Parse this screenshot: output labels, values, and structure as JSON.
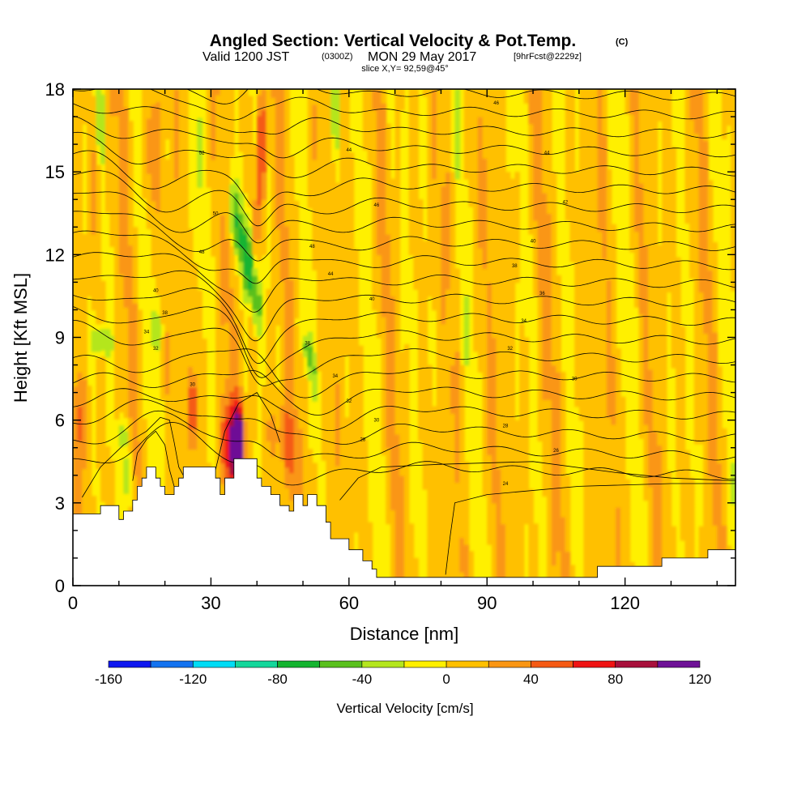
{
  "chart_data": {
    "type": "heatmap",
    "title": "Angled Section: Vertical Velocity & Pot.Temp.",
    "title_unit": "(C)",
    "subtitle_valid": "Valid 1200 JST",
    "subtitle_utc": "(0300Z)",
    "subtitle_date": "MON 29 May 2017",
    "subtitle_fcst": "[9hrFcst@2229z]",
    "slice_label": "slice X,Y= 92,59@45°",
    "xlabel": "Distance [nm]",
    "ylabel": "Height [Kft MSL]",
    "xlim": [
      0,
      144
    ],
    "ylim": [
      0,
      18
    ],
    "x_ticks": [
      "0",
      "30",
      "60",
      "90",
      "120"
    ],
    "x_tick_values": [
      0,
      30,
      60,
      90,
      120
    ],
    "y_ticks": [
      "0",
      "3",
      "6",
      "9",
      "12",
      "15",
      "18"
    ],
    "y_tick_values": [
      0,
      3,
      6,
      9,
      12,
      15,
      18
    ],
    "colorbar": {
      "label": "Vertical Velocity [cm/s]",
      "tick_labels": [
        "-160",
        "-120",
        "-80",
        "-40",
        "0",
        "40",
        "80",
        "120"
      ],
      "bounds": [
        -160,
        -140,
        -120,
        -100,
        -80,
        -60,
        -40,
        -20,
        0,
        20,
        40,
        60,
        80,
        100,
        120
      ],
      "colors": [
        "#0f18f0",
        "#1473f0",
        "#00dcf5",
        "#14d79b",
        "#14b430",
        "#5ac01e",
        "#b4e61e",
        "#fff000",
        "#ffc000",
        "#fa9614",
        "#f55a14",
        "#f01414",
        "#a8103c",
        "#6e1196"
      ]
    },
    "terrain_kft": [
      [
        0,
        2.6
      ],
      [
        6,
        2.6
      ],
      [
        6,
        2.9
      ],
      [
        10,
        2.9
      ],
      [
        10,
        2.4
      ],
      [
        11,
        2.4
      ],
      [
        11,
        2.7
      ],
      [
        13,
        2.7
      ],
      [
        13,
        3.1
      ],
      [
        14,
        3.1
      ],
      [
        14,
        3.6
      ],
      [
        15,
        3.6
      ],
      [
        15,
        3.9
      ],
      [
        16,
        3.9
      ],
      [
        16,
        4.3
      ],
      [
        18,
        4.3
      ],
      [
        18,
        3.9
      ],
      [
        19,
        3.9
      ],
      [
        19,
        3.6
      ],
      [
        20,
        3.6
      ],
      [
        20,
        3.3
      ],
      [
        22,
        3.3
      ],
      [
        22,
        3.6
      ],
      [
        23,
        3.6
      ],
      [
        23,
        3.9
      ],
      [
        24,
        3.9
      ],
      [
        24,
        4.3
      ],
      [
        31,
        4.3
      ],
      [
        31,
        3.9
      ],
      [
        32,
        3.9
      ],
      [
        32,
        3.3
      ],
      [
        33,
        3.3
      ],
      [
        33,
        3.9
      ],
      [
        35,
        3.9
      ],
      [
        35,
        4.6
      ],
      [
        40,
        4.6
      ],
      [
        40,
        3.9
      ],
      [
        41,
        3.9
      ],
      [
        41,
        3.6
      ],
      [
        43,
        3.6
      ],
      [
        43,
        3.3
      ],
      [
        45,
        3.3
      ],
      [
        45,
        2.9
      ],
      [
        47,
        2.9
      ],
      [
        47,
        2.7
      ],
      [
        48,
        2.7
      ],
      [
        48,
        3.3
      ],
      [
        50,
        3.3
      ],
      [
        50,
        2.9
      ],
      [
        51,
        2.9
      ],
      [
        51,
        3.3
      ],
      [
        53,
        3.3
      ],
      [
        53,
        2.9
      ],
      [
        55,
        2.9
      ],
      [
        55,
        2.3
      ],
      [
        56,
        2.3
      ],
      [
        56,
        1.7
      ],
      [
        60,
        1.7
      ],
      [
        60,
        1.3
      ],
      [
        63,
        1.3
      ],
      [
        63,
        0.9
      ],
      [
        65,
        0.9
      ],
      [
        65,
        0.6
      ],
      [
        66,
        0.6
      ],
      [
        66,
        0.3
      ],
      [
        114,
        0.3
      ],
      [
        114,
        0.7
      ],
      [
        128,
        0.7
      ],
      [
        128,
        1.0
      ],
      [
        138,
        1.0
      ],
      [
        138,
        1.3
      ],
      [
        144,
        1.3
      ]
    ],
    "temp_labels": [
      {
        "x": 92,
        "y": 17.5,
        "text": "46"
      },
      {
        "x": 28,
        "y": 15.7,
        "text": "52"
      },
      {
        "x": 60,
        "y": 15.8,
        "text": "44"
      },
      {
        "x": 103,
        "y": 15.7,
        "text": "44"
      },
      {
        "x": 31,
        "y": 13.5,
        "text": "50"
      },
      {
        "x": 66,
        "y": 13.8,
        "text": "46"
      },
      {
        "x": 107,
        "y": 13.9,
        "text": "42"
      },
      {
        "x": 28,
        "y": 12.1,
        "text": "48"
      },
      {
        "x": 52,
        "y": 12.3,
        "text": "48"
      },
      {
        "x": 100,
        "y": 12.5,
        "text": "40"
      },
      {
        "x": 96,
        "y": 11.6,
        "text": "38"
      },
      {
        "x": 56,
        "y": 11.3,
        "text": "44"
      },
      {
        "x": 18,
        "y": 10.7,
        "text": "40"
      },
      {
        "x": 65,
        "y": 10.4,
        "text": "40"
      },
      {
        "x": 102,
        "y": 10.6,
        "text": "36"
      },
      {
        "x": 20,
        "y": 9.9,
        "text": "38"
      },
      {
        "x": 98,
        "y": 9.6,
        "text": "34"
      },
      {
        "x": 16,
        "y": 9.2,
        "text": "34"
      },
      {
        "x": 51,
        "y": 8.8,
        "text": "38"
      },
      {
        "x": 18,
        "y": 8.6,
        "text": "32"
      },
      {
        "x": 95,
        "y": 8.6,
        "text": "32"
      },
      {
        "x": 57,
        "y": 7.6,
        "text": "34"
      },
      {
        "x": 109,
        "y": 7.5,
        "text": "30"
      },
      {
        "x": 26,
        "y": 7.3,
        "text": "30"
      },
      {
        "x": 60,
        "y": 6.7,
        "text": "32"
      },
      {
        "x": 66,
        "y": 6.0,
        "text": "30"
      },
      {
        "x": 94,
        "y": 5.8,
        "text": "28"
      },
      {
        "x": 63,
        "y": 5.3,
        "text": "28"
      },
      {
        "x": 105,
        "y": 4.9,
        "text": "26"
      },
      {
        "x": 94,
        "y": 3.7,
        "text": "24"
      }
    ]
  }
}
